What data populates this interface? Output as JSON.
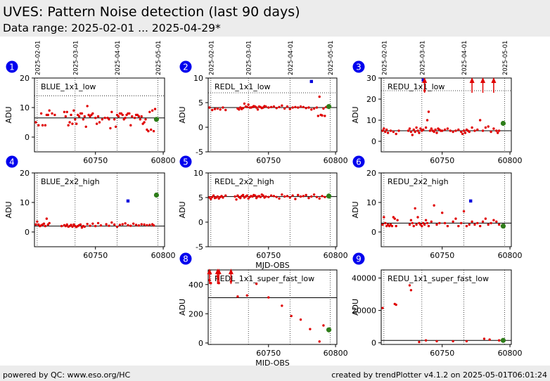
{
  "header": {
    "title": "UVES: Pattern Noise detection (last 90 days)",
    "subtitle": "Data range: 2025-02-01 ... 2025-04-29*"
  },
  "footer": {
    "left": "powered by QC: www.eso.org/HC",
    "right": "created by trendPlotter v4.1.2 on 2025-05-01T06:01:24"
  },
  "colors": {
    "point": "#e00000",
    "latest": "#2e7d1a",
    "outlier": "#0000dd",
    "badge": "#0000ee",
    "header_bg": "#ececec"
  },
  "date_ticks": [
    "2025-02-01",
    "2025-03-01",
    "2025-04-01",
    "2025-05-01"
  ],
  "chart_data": [
    {
      "id": "1",
      "type": "scatter",
      "label": "BLUE_1x1_low",
      "ylabel": "ADU",
      "xlabel": "",
      "xlim": [
        60705,
        60801
      ],
      "ylim": [
        -5,
        20
      ],
      "yticks": [
        0,
        10,
        20
      ],
      "xticks": [
        60750,
        60800
      ],
      "mean": 6.5,
      "upper": 14,
      "lower": null,
      "x": [
        60706,
        60708,
        60710,
        60711,
        60713,
        60714,
        60715,
        60716,
        60718,
        60720,
        60727,
        60728,
        60729,
        60730,
        60731,
        60732,
        60733,
        60734,
        60735,
        60736,
        60737,
        60738,
        60739,
        60740,
        60741,
        60742,
        60743,
        60744,
        60745,
        60746,
        60747,
        60748,
        60750,
        60751,
        60752,
        60753,
        60755,
        60757,
        60759,
        60760,
        60761,
        60762,
        60764,
        60765,
        60766,
        60767,
        60768,
        60769,
        60770,
        60771,
        60772,
        60773,
        60774,
        60775,
        60776,
        60777,
        60779,
        60780,
        60781,
        60782,
        60783,
        60784,
        60785,
        60786,
        60787,
        60788,
        60789,
        60790,
        60791,
        60792,
        60793,
        60794
      ],
      "y": [
        5,
        4,
        8,
        4,
        4,
        7.5,
        7.5,
        9,
        8,
        7.5,
        8.5,
        7,
        8.5,
        4,
        5,
        7.5,
        4.5,
        9,
        6,
        4.5,
        7.5,
        7,
        8,
        8,
        6,
        7,
        3.5,
        10.5,
        7.5,
        7,
        7.5,
        8,
        6.5,
        4.5,
        7,
        5,
        6,
        6.5,
        6.5,
        6,
        3,
        8.5,
        6,
        3.5,
        7.5,
        7,
        8,
        8,
        7.5,
        6,
        6.5,
        7.5,
        8,
        8,
        4,
        7,
        6.5,
        7.5,
        7.5,
        7,
        6,
        7,
        4.5,
        5,
        6,
        2.5,
        2,
        8.5,
        2.5,
        9,
        2,
        9.5
      ],
      "latest": {
        "x": 60795,
        "y": 6
      },
      "outliers": [],
      "arrows": []
    },
    {
      "id": "2",
      "type": "scatter",
      "label": "REDL_1x1_low",
      "ylabel": "ADU",
      "xlabel": "",
      "xlim": [
        60705,
        60801
      ],
      "ylim": [
        -5,
        10
      ],
      "yticks": [
        -5,
        0,
        5,
        10
      ],
      "xticks": [
        60750,
        60800
      ],
      "mean": 4,
      "upper": 7,
      "lower": null,
      "x": [
        60706,
        60708,
        60710,
        60712,
        60714,
        60716,
        60718,
        60727,
        60728,
        60729,
        60730,
        60731,
        60732,
        60733,
        60734,
        60735,
        60736,
        60737,
        60738,
        60739,
        60740,
        60741,
        60742,
        60743,
        60744,
        60745,
        60746,
        60747,
        60748,
        60750,
        60752,
        60754,
        60756,
        60758,
        60760,
        60762,
        60764,
        60766,
        60768,
        60770,
        60772,
        60774,
        60776,
        60778,
        60780,
        60782,
        60784,
        60786,
        60787,
        60788,
        60789,
        60790,
        60791,
        60792,
        60793
      ],
      "y": [
        4,
        3.5,
        3.7,
        3.8,
        3.6,
        4,
        3.5,
        3.8,
        3.6,
        4,
        3.7,
        3.9,
        4.8,
        4.2,
        4.1,
        4.6,
        4,
        4,
        4.1,
        4.3,
        4.2,
        4,
        3.6,
        4.2,
        4.1,
        3.9,
        4,
        4.3,
        4.2,
        4,
        4.1,
        4.2,
        3.9,
        4.1,
        4.4,
        3.8,
        4.2,
        3.7,
        4,
        4.1,
        4,
        4.2,
        4.1,
        3.9,
        4,
        3.6,
        3.8,
        4,
        2.3,
        6.2,
        2.5,
        2.4,
        3.8,
        2.3,
        4.1
      ],
      "latest": {
        "x": 60795,
        "y": 4.2
      },
      "outliers": [
        {
          "x": 60782,
          "y": 9.3
        }
      ],
      "arrows": []
    },
    {
      "id": "3",
      "type": "scatter",
      "label": "REDU_1x1_low",
      "ylabel": "ADU",
      "xlabel": "",
      "xlim": [
        60705,
        60801
      ],
      "ylim": [
        -5,
        30
      ],
      "yticks": [
        0,
        10,
        20,
        30
      ],
      "xticks": [
        60750,
        60800
      ],
      "mean": 5,
      "upper": 24,
      "lower": null,
      "x": [
        60706,
        60707,
        60708,
        60709,
        60710,
        60712,
        60714,
        60716,
        60718,
        60725,
        60726,
        60727,
        60728,
        60729,
        60730,
        60731,
        60732,
        60733,
        60734,
        60735,
        60736,
        60737,
        60738,
        60739,
        60740,
        60741,
        60742,
        60743,
        60744,
        60745,
        60746,
        60747,
        60748,
        60749,
        60750,
        60752,
        60754,
        60756,
        60758,
        60760,
        60762,
        60764,
        60765,
        60766,
        60767,
        60768,
        60769,
        60770,
        60772,
        60774,
        60776,
        60778,
        60780,
        60782,
        60784,
        60786,
        60788,
        60790,
        60791,
        60792
      ],
      "y": [
        5,
        6,
        4.5,
        5.5,
        4,
        5,
        4.5,
        3.5,
        5,
        5,
        6,
        4.5,
        3,
        5.5,
        4.5,
        6.5,
        5,
        4,
        6,
        5,
        5.5,
        24,
        6.5,
        10,
        14,
        5,
        6,
        5,
        4.5,
        5.5,
        4,
        6,
        5.5,
        5,
        5,
        5.5,
        6,
        5,
        4.5,
        5,
        5.5,
        4.5,
        3.5,
        5,
        4,
        5.5,
        5,
        4.5,
        6.5,
        5,
        5.5,
        10,
        5,
        6.5,
        7,
        4.5,
        6,
        5,
        4,
        5
      ],
      "latest": {
        "x": 60795,
        "y": 8.5
      },
      "outliers": [
        {
          "x": 60736,
          "y": 29
        }
      ],
      "arrows": [
        {
          "x": 60737,
          "y": 29
        },
        {
          "x": 60772,
          "y": 29
        },
        {
          "x": 60780,
          "y": 29
        },
        {
          "x": 60788,
          "y": 29
        }
      ]
    },
    {
      "id": "4",
      "type": "scatter",
      "label": "BLUE_2x2_high",
      "ylabel": "ADU",
      "xlabel": "",
      "xlim": [
        60705,
        60801
      ],
      "ylim": [
        -5,
        20
      ],
      "yticks": [
        0,
        10,
        20
      ],
      "xticks": [
        60750,
        60800
      ],
      "mean": 2,
      "upper": null,
      "lower": null,
      "x": [
        60706,
        60707,
        60708,
        60709,
        60710,
        60711,
        60712,
        60713,
        60714,
        60715,
        60716,
        60725,
        60727,
        60728,
        60729,
        60730,
        60731,
        60732,
        60733,
        60734,
        60735,
        60736,
        60737,
        60738,
        60739,
        60740,
        60741,
        60742,
        60744,
        60746,
        60748,
        60750,
        60752,
        60754,
        60758,
        60760,
        60762,
        60764,
        60766,
        60768,
        60770,
        60772,
        60774,
        60776,
        60778,
        60780,
        60782,
        60784,
        60786,
        60788,
        60790,
        60792,
        60793
      ],
      "y": [
        2.5,
        3.5,
        2.5,
        2,
        2.2,
        2.5,
        2.8,
        2,
        4.5,
        2.5,
        3,
        2,
        2.3,
        2,
        2.5,
        1.8,
        2,
        2.4,
        1.8,
        2.5,
        2,
        1.7,
        2,
        2.3,
        2.5,
        1.5,
        2,
        1.8,
        2.7,
        2.1,
        2.8,
        2,
        3,
        2.2,
        2.6,
        2.1,
        3.2,
        2.5,
        1.8,
        2.4,
        2.6,
        2.9,
        2.3,
        2.1,
        2.8,
        2.4,
        2.2,
        2.6,
        2.5,
        2.3,
        2.4,
        2.6,
        2.2
      ],
      "latest": {
        "x": 60795,
        "y": 12.5
      },
      "outliers": [
        {
          "x": 60774,
          "y": 10.5
        }
      ],
      "arrows": []
    },
    {
      "id": "5",
      "type": "scatter",
      "label": "REDL_2x2_high",
      "ylabel": "ADU",
      "xlabel": "MJD-OBS",
      "xlim": [
        60705,
        60801
      ],
      "ylim": [
        -5,
        10
      ],
      "yticks": [
        -5,
        0,
        5,
        10
      ],
      "xticks": [
        60750,
        60800
      ],
      "mean": 5.2,
      "upper": null,
      "lower": null,
      "x": [
        60706,
        60707,
        60708,
        60709,
        60710,
        60711,
        60712,
        60713,
        60714,
        60715,
        60716,
        60718,
        60725,
        60726,
        60727,
        60728,
        60729,
        60730,
        60731,
        60732,
        60733,
        60734,
        60735,
        60736,
        60737,
        60738,
        60739,
        60740,
        60741,
        60742,
        60743,
        60744,
        60745,
        60746,
        60747,
        60748,
        60750,
        60752,
        60754,
        60756,
        60758,
        60760,
        60762,
        60764,
        60766,
        60768,
        60770,
        60772,
        60774,
        60776,
        60778,
        60780,
        60782,
        60784,
        60786,
        60788,
        60790,
        60792
      ],
      "y": [
        5,
        4.7,
        5.1,
        5.4,
        4.9,
        5,
        5.2,
        4.8,
        5.1,
        5.3,
        5,
        5.4,
        5.2,
        4.6,
        5.4,
        5.1,
        4.9,
        5.3,
        5.5,
        5,
        5.2,
        5.4,
        4.8,
        5.1,
        5.3,
        5.2,
        5.5,
        5.4,
        4.9,
        5.2,
        5.3,
        5.1,
        5.6,
        5.4,
        5,
        5.2,
        5.1,
        5.4,
        5.3,
        5.1,
        4.8,
        5.6,
        5.2,
        5.3,
        5,
        5.4,
        4.7,
        5.5,
        5.2,
        5.3,
        5.5,
        4.9,
        5.2,
        5.6,
        5.1,
        4.8,
        5.3,
        5.1
      ],
      "latest": {
        "x": 60795,
        "y": 5.3
      },
      "outliers": [],
      "arrows": []
    },
    {
      "id": "6",
      "type": "scatter",
      "label": "REDU_2x2_high",
      "ylabel": "ADU",
      "xlabel": "",
      "xlim": [
        60705,
        60801
      ],
      "ylim": [
        -5,
        20
      ],
      "yticks": [
        0,
        10,
        20
      ],
      "xticks": [
        60750,
        60800
      ],
      "mean": 3,
      "upper": null,
      "lower": null,
      "x": [
        60706,
        60707,
        60708,
        60709,
        60710,
        60711,
        60712,
        60713,
        60714,
        60715,
        60716,
        60717,
        60726,
        60727,
        60728,
        60729,
        60730,
        60731,
        60732,
        60733,
        60734,
        60735,
        60736,
        60737,
        60738,
        60739,
        60740,
        60742,
        60744,
        60746,
        60748,
        60750,
        60752,
        60754,
        60758,
        60760,
        60762,
        60764,
        60766,
        60768,
        60770,
        60772,
        60774,
        60776,
        60778,
        60780,
        60782,
        60784,
        60786,
        60788,
        60790,
        60792
      ],
      "y": [
        2.5,
        5,
        3,
        2,
        2.5,
        2,
        2.5,
        2,
        5,
        4.5,
        2,
        4,
        2.5,
        4,
        3,
        2,
        8,
        2.5,
        5,
        3,
        2.5,
        2,
        3,
        2.5,
        4,
        3,
        2,
        3.5,
        9,
        2.5,
        3,
        6.5,
        3,
        2,
        3.5,
        4.5,
        2,
        3,
        7,
        2,
        2.5,
        3.5,
        2.5,
        3,
        2,
        3.5,
        4.5,
        2.5,
        3,
        4,
        3.5,
        2.5
      ],
      "latest": {
        "x": 60795,
        "y": 2
      },
      "outliers": [
        {
          "x": 60771,
          "y": 10.5
        }
      ],
      "arrows": []
    },
    {
      "id": "8",
      "type": "scatter",
      "label": "REDL_1x1_super_fast_low",
      "ylabel": "ADU",
      "xlabel": "MJD-OBS",
      "xlim": [
        60705,
        60801
      ],
      "ylim": [
        -10,
        500
      ],
      "yticks": [
        0,
        200,
        400
      ],
      "xticks": [
        60750,
        60800
      ],
      "mean": 310,
      "upper": null,
      "lower": null,
      "x": [
        60706,
        60707,
        60712,
        60713,
        60722,
        60727,
        60734,
        60741,
        60750,
        60760,
        60767,
        60774,
        60781,
        60788,
        60791
      ],
      "y": [
        430,
        410,
        455,
        410,
        420,
        318,
        325,
        405,
        312,
        255,
        185,
        160,
        95,
        10,
        120
      ],
      "latest": {
        "x": 60795,
        "y": 90
      },
      "outliers": [],
      "arrows": [
        {
          "x": 60706,
          "y": 490
        },
        {
          "x": 60712,
          "y": 490
        },
        {
          "x": 60713,
          "y": 490
        },
        {
          "x": 60722,
          "y": 490
        }
      ]
    },
    {
      "id": "9",
      "type": "scatter",
      "label": "REDU_1x1_super_fast_low",
      "ylabel": "ADU",
      "xlabel": "",
      "xlim": [
        60705,
        60801
      ],
      "ylim": [
        -1000,
        45000
      ],
      "yticks": [
        0,
        20000,
        40000
      ],
      "xticks": [
        60750,
        60800
      ],
      "mean": 1500,
      "upper": null,
      "lower": null,
      "x": [
        60706,
        60715,
        60716,
        60726,
        60727,
        60733,
        60738,
        60746,
        60758,
        60768,
        60781,
        60785,
        60792
      ],
      "y": [
        21500,
        24000,
        23500,
        35500,
        32500,
        500,
        1500,
        1000,
        1000,
        1000,
        2500,
        2000,
        1500
      ],
      "latest": {
        "x": 60795,
        "y": 1500
      },
      "outliers": [],
      "arrows": []
    }
  ]
}
